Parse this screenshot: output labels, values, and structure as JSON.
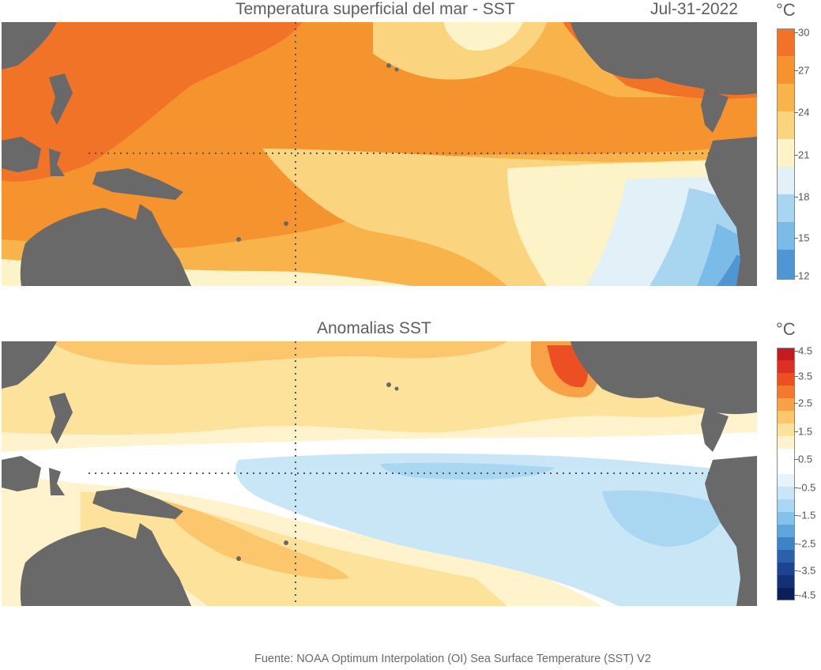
{
  "top_panel": {
    "title": "Temperatura superficial del mar - SST",
    "date": "Jul-31-2022",
    "unit": "°C",
    "colorbar_labels": [
      "30",
      "27",
      "24",
      "21",
      "18",
      "15",
      "12"
    ],
    "colorbar_colors": [
      "#f07327",
      "#f5932e",
      "#f8b34a",
      "#fad47f",
      "#fdf3c9",
      "#e2f0f7",
      "#a8d6f0",
      "#7bbbe7",
      "#4f96d3"
    ]
  },
  "bottom_panel": {
    "title": "Anomalias SST",
    "unit": "°C",
    "colorbar_labels": [
      "4.5",
      "3.5",
      "2.5",
      "1.5",
      "0.5",
      "-0.5",
      "-1.5",
      "-2.5",
      "-3.5",
      "-4.5"
    ],
    "colorbar_colors": [
      "#c21b20",
      "#dd3025",
      "#ec4f22",
      "#f27a2f",
      "#f7a247",
      "#fbc66c",
      "#fde29b",
      "#fef3cd",
      "#ffffff",
      "#ffffff",
      "#e6f3fb",
      "#c9e6f6",
      "#a9d6f1",
      "#85c2ea",
      "#5ea6dc",
      "#3d84c6",
      "#2a61ab",
      "#1d4490",
      "#143077",
      "#0d1f5a"
    ]
  },
  "footer": "Fuente: NOAA Optimum Interpolation (OI) Sea Surface Temperature (SST) V2",
  "colors": {
    "land": "#696969",
    "gridline": "#555555"
  }
}
